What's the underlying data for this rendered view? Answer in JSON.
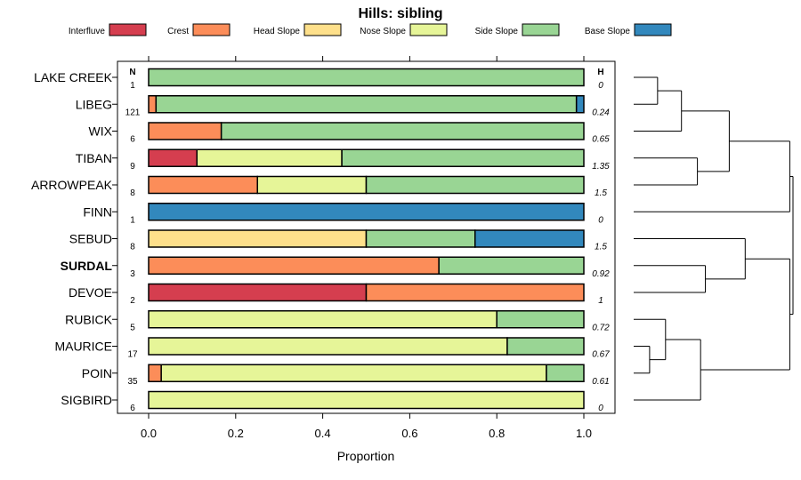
{
  "chart_data": {
    "type": "bar",
    "orientation": "horizontal-stacked-proportion",
    "title": "Hills: sibling",
    "xlabel": "Proportion",
    "ylabel": "",
    "xlim": [
      0,
      1
    ],
    "xticks": [
      "0.0",
      "0.2",
      "0.4",
      "0.6",
      "0.8",
      "1.0"
    ],
    "n_header": "N",
    "h_header": "H",
    "categories": [
      "LAKE CREEK",
      "LIBEG",
      "WIX",
      "TIBAN",
      "ARROWPEAK",
      "FINN",
      "SEBUD",
      "SURDAL",
      "DEVOE",
      "RUBICK",
      "MAURICE",
      "POIN",
      "SIGBIRD"
    ],
    "highlighted_category": "SURDAL",
    "n_values": [
      "1",
      "121",
      "6",
      "9",
      "8",
      "1",
      "8",
      "3",
      "2",
      "5",
      "17",
      "35",
      "6"
    ],
    "h_values": [
      "0",
      "0.24",
      "0.65",
      "1.35",
      "1.5",
      "0",
      "1.5",
      "0.92",
      "1",
      "0.72",
      "0.67",
      "0.61",
      "0"
    ],
    "series": [
      {
        "name": "Interfluve",
        "color": "#d53e4f",
        "values": [
          0,
          0,
          0,
          0.111,
          0,
          0,
          0,
          0,
          0.5,
          0,
          0,
          0,
          0
        ]
      },
      {
        "name": "Crest",
        "color": "#fc8d59",
        "values": [
          0,
          0.017,
          0.167,
          0,
          0.25,
          0,
          0,
          0.667,
          0.5,
          0,
          0,
          0.029,
          0
        ]
      },
      {
        "name": "Head Slope",
        "color": "#fee08b",
        "values": [
          0,
          0,
          0,
          0,
          0,
          0,
          0.5,
          0,
          0,
          0,
          0,
          0,
          0
        ]
      },
      {
        "name": "Nose Slope",
        "color": "#e6f598",
        "values": [
          0,
          0,
          0,
          0.333,
          0.25,
          0,
          0,
          0,
          0,
          0.8,
          0.824,
          0.885,
          1
        ]
      },
      {
        "name": "Side Slope",
        "color": "#99d594",
        "values": [
          1,
          0.966,
          0.833,
          0.556,
          0.5,
          0,
          0.25,
          0.333,
          0,
          0.2,
          0.176,
          0.086,
          0
        ]
      },
      {
        "name": "Base Slope",
        "color": "#3288bd",
        "values": [
          0,
          0.017,
          0,
          0,
          0,
          1,
          0.25,
          0,
          0,
          0,
          0,
          0,
          0
        ]
      }
    ],
    "dendrogram_merges": [
      {
        "a": 0,
        "b": 1,
        "height": 0.15
      },
      {
        "a": 11,
        "b": 10,
        "height": 0.1
      },
      {
        "a": -2,
        "b": 9,
        "height": 0.2
      },
      {
        "a": -1,
        "b": 2,
        "height": 0.3
      },
      {
        "a": 3,
        "b": 4,
        "height": 0.4
      },
      {
        "a": 7,
        "b": 8,
        "height": 0.45
      },
      {
        "a": -3,
        "b": 12,
        "height": 0.42
      },
      {
        "a": -4,
        "b": -5,
        "height": 0.6
      },
      {
        "a": 6,
        "b": -6,
        "height": 0.7
      },
      {
        "a": -8,
        "b": 5,
        "height": 0.98
      },
      {
        "a": -9,
        "b": -7,
        "height": 0.98
      },
      {
        "a": -11,
        "b": -10,
        "height": 1.0
      }
    ]
  }
}
